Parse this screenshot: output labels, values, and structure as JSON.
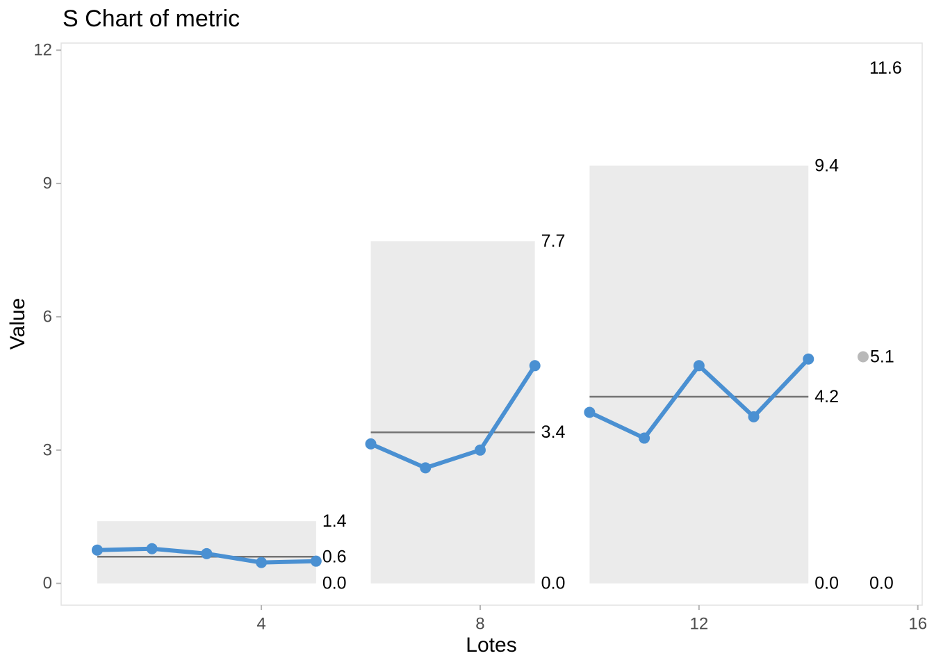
{
  "chart_data": {
    "type": "line",
    "variant": "s-control-chart",
    "title": "S Chart of metric",
    "xlabel": "Lotes",
    "ylabel": "Value",
    "x_ticks": [
      4,
      8,
      12,
      16
    ],
    "y_ticks": [
      0,
      3,
      6,
      9,
      12
    ],
    "xlim": [
      0.34,
      16.08
    ],
    "ylim": [
      -0.49,
      12.16
    ],
    "grid": false,
    "legend": false,
    "colors": {
      "series": "#4a90d2",
      "band": "#ebebeb",
      "center_line": "#737373",
      "excluded_point": "#b9b9b9",
      "panel_border": "#e2e2e2",
      "tick_mark": "#b3b3b3",
      "tick_text": "#4d4d4d",
      "label_text": "#000000"
    },
    "phases": [
      {
        "name": "phase-1",
        "x": [
          1,
          2,
          3,
          4,
          5
        ],
        "values": [
          0.75,
          0.78,
          0.67,
          0.47,
          0.5
        ],
        "ucl": 1.4,
        "cl": 0.6,
        "lcl": 0.0,
        "ucl_label": "1.4",
        "cl_label": "0.6",
        "lcl_label": "0.0",
        "band": true,
        "point_style": "normal"
      },
      {
        "name": "phase-2",
        "x": [
          6,
          7,
          8,
          9
        ],
        "values": [
          3.14,
          2.6,
          3.0,
          4.9
        ],
        "ucl": 7.7,
        "cl": 3.4,
        "lcl": 0.0,
        "ucl_label": "7.7",
        "cl_label": "3.4",
        "lcl_label": "0.0",
        "band": true,
        "point_style": "normal"
      },
      {
        "name": "phase-3",
        "x": [
          10,
          11,
          12,
          13,
          14
        ],
        "values": [
          3.85,
          3.27,
          4.9,
          3.75,
          5.05
        ],
        "ucl": 9.4,
        "cl": 4.2,
        "lcl": 0.0,
        "ucl_label": "9.4",
        "cl_label": "4.2",
        "lcl_label": "0.0",
        "band": true,
        "point_style": "normal"
      },
      {
        "name": "phase-4",
        "x": [
          15
        ],
        "values": [
          5.1
        ],
        "ucl": 11.6,
        "cl": null,
        "lcl": 0.0,
        "ucl_label": "11.6",
        "cl_label": null,
        "lcl_label": "0.0",
        "point_label": "5.1",
        "band": false,
        "point_style": "excluded"
      }
    ]
  }
}
